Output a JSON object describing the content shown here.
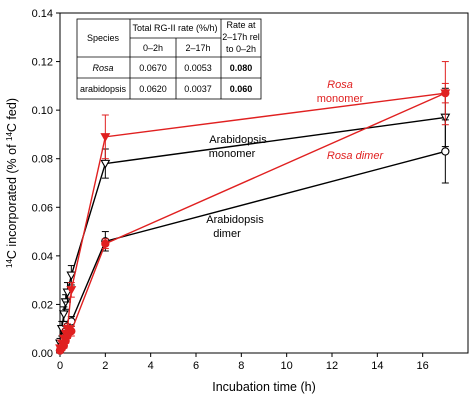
{
  "chart_data": {
    "type": "line",
    "xlabel": "Incubation time (h)",
    "ylabel_parts": [
      "14",
      "C incorporated (% of ",
      "14",
      "C fed)"
    ],
    "xlim": [
      0,
      18
    ],
    "ylim": [
      0,
      0.14
    ],
    "x_ticks": [
      0,
      2,
      4,
      6,
      8,
      10,
      12,
      14,
      16
    ],
    "y_ticks": [
      0.0,
      0.02,
      0.04,
      0.06,
      0.08,
      0.1,
      0.12,
      0.14
    ],
    "x_tick_labels": [
      "0",
      "2",
      "4",
      "6",
      "8",
      "10",
      "12",
      "14",
      "16"
    ],
    "y_tick_labels": [
      "0.00",
      "0.02",
      "0.04",
      "0.06",
      "0.08",
      "0.10",
      "0.12",
      "0.14"
    ],
    "colors": {
      "rosa": "#e02020",
      "arabidopsis": "#000000"
    },
    "series": [
      {
        "name": "Rosa monomer",
        "color": "#e02020",
        "marker": "triangle-down-filled",
        "x": [
          0,
          0.08,
          0.17,
          0.25,
          0.33,
          0.5,
          2,
          17
        ],
        "y": [
          0.002,
          0.004,
          0.006,
          0.008,
          0.01,
          0.026,
          0.089,
          0.107
        ],
        "err": [
          0.001,
          0.001,
          0.001,
          0.002,
          0.002,
          0.003,
          0.009,
          0.013
        ]
      },
      {
        "name": "Rosa dimer",
        "color": "#e02020",
        "marker": "circle-filled",
        "x": [
          0,
          0.08,
          0.17,
          0.25,
          0.33,
          0.5,
          2,
          17
        ],
        "y": [
          0.001,
          0.002,
          0.003,
          0.005,
          0.007,
          0.009,
          0.045,
          0.107
        ],
        "err": [
          0.001,
          0.001,
          0.001,
          0.001,
          0.001,
          0.002,
          0.002,
          0.004
        ]
      },
      {
        "name": "Arabidopsis monomer",
        "color": "#000000",
        "marker": "triangle-down-open",
        "x": [
          0,
          0.08,
          0.17,
          0.25,
          0.33,
          0.5,
          2,
          17
        ],
        "y": [
          0.004,
          0.01,
          0.016,
          0.021,
          0.025,
          0.032,
          0.078,
          0.097
        ],
        "err": [
          0.002,
          0.003,
          0.003,
          0.003,
          0.004,
          0.004,
          0.006,
          0.012
        ]
      },
      {
        "name": "Arabidopsis dimer",
        "color": "#000000",
        "marker": "circle-open",
        "x": [
          0,
          0.08,
          0.17,
          0.25,
          0.33,
          0.5,
          2,
          17
        ],
        "y": [
          0.001,
          0.003,
          0.006,
          0.009,
          0.011,
          0.013,
          0.046,
          0.083
        ],
        "err": [
          0.001,
          0.001,
          0.002,
          0.002,
          0.002,
          0.002,
          0.004,
          0.013
        ]
      }
    ],
    "annotations": [
      {
        "text": "Rosa",
        "color": "#e02020",
        "italic": true
      },
      {
        "text": "monomer",
        "color": "#e02020",
        "italic": false
      },
      {
        "text": "Rosa dimer",
        "color": "#e02020",
        "italic": true
      },
      {
        "text": "Arabidopsis",
        "color": "#000000",
        "italic": false
      },
      {
        "text": "monomer",
        "color": "#000000",
        "italic": false
      },
      {
        "text": "Arabidopsis",
        "color": "#000000",
        "italic": false
      },
      {
        "text": "dimer",
        "color": "#000000",
        "italic": false
      }
    ],
    "table": {
      "header_species": "Species",
      "header_total": "Total RG-II rate (%/h)",
      "header_0_2": "0–2h",
      "header_2_17": "2–17h",
      "header_ratio_lines": [
        "Rate at",
        "2–17h rel",
        "to 0–2h"
      ],
      "rows": [
        {
          "species": "Rosa",
          "r0_2": "0.0670",
          "r2_17": "0.0053",
          "ratio": "0.080",
          "color": "#e02020",
          "italic": true
        },
        {
          "species": "arabidopsis",
          "r0_2": "0.0620",
          "r2_17": "0.0037",
          "ratio": "0.060",
          "color": "#000000",
          "italic": false
        }
      ]
    }
  }
}
